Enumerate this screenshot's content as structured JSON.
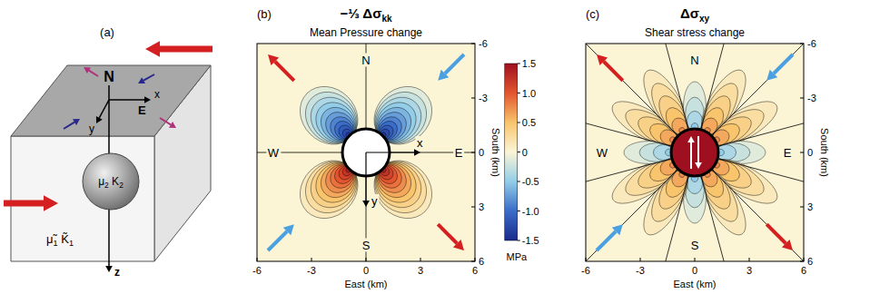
{
  "panel_a": {
    "label": "(a)",
    "north": "N",
    "east": "E",
    "x_axis": "x",
    "y_axis": "y",
    "z_axis": "z",
    "inclusion_moduli": [
      {
        "symbol": "μ",
        "subscript": "2"
      },
      {
        "symbol": "K",
        "subscript": "2"
      }
    ],
    "host_moduli": [
      {
        "symbol": "μ̃",
        "subscript": "1"
      },
      {
        "symbol": "K̃",
        "subscript": "1"
      }
    ]
  },
  "chart_data": [
    {
      "type": "contour",
      "panel_label": "(b)",
      "title": "−⅓ Δσ",
      "title_subscript": "kk",
      "subtitle": "Mean Pressure change",
      "x_label": "East (km)",
      "y_label": "South (km)",
      "xlim": [
        -6,
        6
      ],
      "ylim": [
        -6,
        6
      ],
      "xticks": [
        -6,
        -3,
        0,
        3,
        6
      ],
      "yticks": [
        -6,
        -3,
        0,
        3,
        6
      ],
      "inclusion_radius": 1.3,
      "contour_interval": 0.125,
      "lobes": [
        {
          "angle": -135,
          "peak": -1.5,
          "reach": 4.6
        },
        {
          "angle": -45,
          "peak": -1.5,
          "reach": 4.6
        },
        {
          "angle": 45,
          "peak": 1.5,
          "reach": 4.6
        },
        {
          "angle": 135,
          "peak": 1.5,
          "reach": 4.6
        }
      ],
      "map_labels": [
        {
          "text": "N",
          "x": 0,
          "y": -5.1
        },
        {
          "text": "S",
          "x": 0,
          "y": 5.1
        },
        {
          "text": "W",
          "x": -5.1,
          "y": 0
        },
        {
          "text": "E",
          "x": 5.1,
          "y": 0
        }
      ],
      "coordinate_axes": [
        {
          "text": "x",
          "x": 3,
          "y": 0
        },
        {
          "text": "y",
          "x": 0,
          "y": 3
        }
      ],
      "colorbar": {
        "range": [
          -1.5,
          1.5
        ],
        "ticks": [
          1.5,
          {
            "value": 1,
            "label": "1.0"
          },
          0.5,
          0,
          -0.5,
          {
            "value": -1,
            "label": "-1.0"
          },
          -1.5
        ],
        "label": "MPa"
      }
    },
    {
      "type": "contour",
      "panel_label": "(c)",
      "title": "Δσ",
      "title_subscript": "xy",
      "subtitle": "Shear stress change",
      "x_label": "East (km)",
      "y_label": "South (km)",
      "xlim": [
        -6,
        6
      ],
      "ylim": [
        -6,
        6
      ],
      "xticks": [
        -6,
        -3,
        0,
        3,
        6
      ],
      "yticks": [
        -6,
        -3,
        0,
        3,
        6
      ],
      "inclusion_radius": 1.3,
      "inclusion_value": 1.5,
      "contour_interval": 0.125,
      "lobes": [
        {
          "angle": -150,
          "peak": 0.75,
          "reach": 5.2
        },
        {
          "angle": -120,
          "peak": 0.75,
          "reach": 5.2
        },
        {
          "angle": -90,
          "peak": -0.5,
          "reach": 3.9
        },
        {
          "angle": -60,
          "peak": 0.75,
          "reach": 5.2
        },
        {
          "angle": -30,
          "peak": 0.75,
          "reach": 5.2
        },
        {
          "angle": 0,
          "peak": -0.5,
          "reach": 3.9
        },
        {
          "angle": 30,
          "peak": 0.75,
          "reach": 5.2
        },
        {
          "angle": 60,
          "peak": 0.75,
          "reach": 5.2
        },
        {
          "angle": 90,
          "peak": -0.5,
          "reach": 3.9
        },
        {
          "angle": 120,
          "peak": 0.75,
          "reach": 5.2
        },
        {
          "angle": 150,
          "peak": 0.75,
          "reach": 5.2
        },
        {
          "angle": 180,
          "peak": -0.5,
          "reach": 3.9
        }
      ],
      "map_labels": [
        {
          "text": "N",
          "x": 0,
          "y": -5.1
        },
        {
          "text": "S",
          "x": 0,
          "y": 5.1
        },
        {
          "text": "W",
          "x": -5.1,
          "y": 0
        },
        {
          "text": "E",
          "x": 5.1,
          "y": 0
        }
      ]
    }
  ]
}
